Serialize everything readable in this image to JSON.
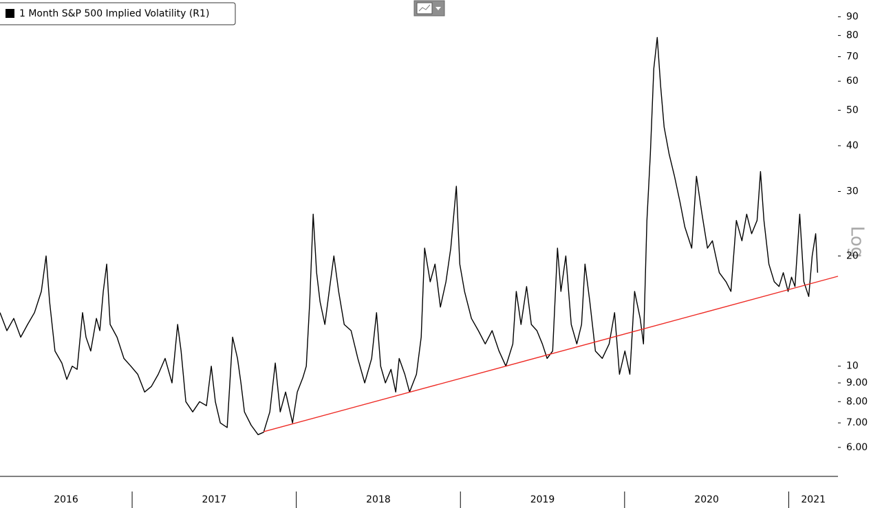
{
  "chart_data": {
    "type": "line",
    "legend": "top-left",
    "yscale": "log",
    "axis_side": "right",
    "scale_note": "Log",
    "xlim": [
      2016.195,
      2021.3
    ],
    "xticks": [
      2016,
      2017,
      2018,
      2019,
      2020,
      2021
    ],
    "ylim": [
      5,
      100
    ],
    "yticks": [
      90,
      80,
      70,
      60,
      50,
      40,
      30,
      20,
      10,
      {
        "value": 9,
        "label": "9.00"
      },
      {
        "value": 8,
        "label": "8.00"
      },
      {
        "value": 7,
        "label": "7.00"
      },
      {
        "value": 6,
        "label": "6.00"
      }
    ],
    "x": [
      2016.195,
      2016.237,
      2016.279,
      2016.321,
      2016.363,
      2016.405,
      2016.447,
      2016.476,
      2016.497,
      2016.53,
      2016.572,
      2016.602,
      2016.635,
      2016.665,
      2016.698,
      2016.719,
      2016.748,
      2016.782,
      2016.803,
      2016.824,
      2016.845,
      2016.866,
      2016.908,
      2016.95,
      2016.992,
      2017.034,
      2017.076,
      2017.117,
      2017.159,
      2017.201,
      2017.243,
      2017.277,
      2017.298,
      2017.327,
      2017.369,
      2017.411,
      2017.453,
      2017.482,
      2017.507,
      2017.537,
      2017.579,
      2017.612,
      2017.642,
      2017.663,
      2017.684,
      2017.725,
      2017.767,
      2017.801,
      2017.839,
      2017.872,
      2017.902,
      2017.935,
      2017.977,
      2018.006,
      2018.04,
      2018.061,
      2018.082,
      2018.103,
      2018.124,
      2018.145,
      2018.174,
      2018.208,
      2018.229,
      2018.258,
      2018.292,
      2018.334,
      2018.375,
      2018.417,
      2018.459,
      2018.489,
      2018.514,
      2018.543,
      2018.577,
      2018.606,
      2018.627,
      2018.661,
      2018.69,
      2018.732,
      2018.761,
      2018.782,
      2018.816,
      2018.845,
      2018.878,
      2018.912,
      2018.941,
      2018.975,
      2018.996,
      2019.025,
      2019.067,
      2019.109,
      2019.151,
      2019.193,
      2019.235,
      2019.277,
      2019.319,
      2019.34,
      2019.369,
      2019.403,
      2019.432,
      2019.466,
      2019.499,
      2019.528,
      2019.562,
      2019.591,
      2019.612,
      2019.642,
      2019.675,
      2019.709,
      2019.738,
      2019.759,
      2019.788,
      2019.822,
      2019.864,
      2019.906,
      2019.939,
      2019.969,
      2020.002,
      2020.032,
      2020.061,
      2020.095,
      2020.115,
      2020.136,
      2020.157,
      2020.178,
      2020.199,
      2020.22,
      2020.241,
      2020.271,
      2020.304,
      2020.338,
      2020.367,
      2020.409,
      2020.438,
      2020.472,
      2020.505,
      2020.535,
      2020.577,
      2020.618,
      2020.648,
      2020.681,
      2020.715,
      2020.744,
      2020.774,
      2020.807,
      2020.828,
      2020.849,
      2020.879,
      2020.912,
      2020.941,
      2020.967,
      2020.996,
      2021.017,
      2021.038,
      2021.067,
      2021.092,
      2021.122,
      2021.143,
      2021.164,
      2021.176
    ],
    "series": [
      {
        "name": "1 Month S&P 500 Implied Volatility (R1)",
        "color": "#000000",
        "axis": "y2",
        "values": [
          14,
          12.5,
          13.5,
          12,
          13,
          14,
          16,
          20,
          15,
          11,
          10.2,
          9.2,
          10,
          9.8,
          14,
          12,
          11,
          13.5,
          12.5,
          16,
          19,
          13,
          12,
          10.5,
          10,
          9.5,
          8.5,
          8.8,
          9.5,
          10.5,
          9,
          13,
          11,
          8,
          7.5,
          8,
          7.8,
          10,
          8,
          7,
          6.8,
          12,
          10.5,
          9,
          7.5,
          6.9,
          6.5,
          6.6,
          7.5,
          10.2,
          7.5,
          8.5,
          7,
          8.5,
          9.3,
          10,
          15,
          26,
          18,
          15,
          13,
          17,
          20,
          16,
          13,
          12.5,
          10.5,
          9,
          10.5,
          14,
          10,
          9,
          9.8,
          8.5,
          10.5,
          9.5,
          8.5,
          9.5,
          12,
          21,
          17,
          19,
          14.5,
          17,
          21,
          31,
          19,
          16,
          13.5,
          12.5,
          11.5,
          12.5,
          11,
          10,
          11.5,
          16,
          13,
          16.5,
          13,
          12.5,
          11.5,
          10.5,
          11,
          21,
          16,
          20,
          13,
          11.5,
          13,
          19,
          15,
          11,
          10.5,
          11.5,
          14,
          9.5,
          11,
          9.5,
          16,
          13.5,
          11.5,
          25,
          38,
          65,
          79,
          58,
          45,
          38,
          33,
          28,
          24,
          21,
          33,
          26,
          21,
          22,
          18,
          17,
          16,
          25,
          22,
          26,
          23,
          25,
          34,
          25,
          19,
          17,
          16.5,
          18,
          16,
          17.5,
          16.5,
          26,
          17,
          15.5,
          20,
          23,
          18
        ]
      }
    ],
    "trendline": {
      "x": [
        2017.8,
        2021.3
      ],
      "values": [
        6.62,
        17.6
      ],
      "color": "#ee2a24"
    }
  }
}
